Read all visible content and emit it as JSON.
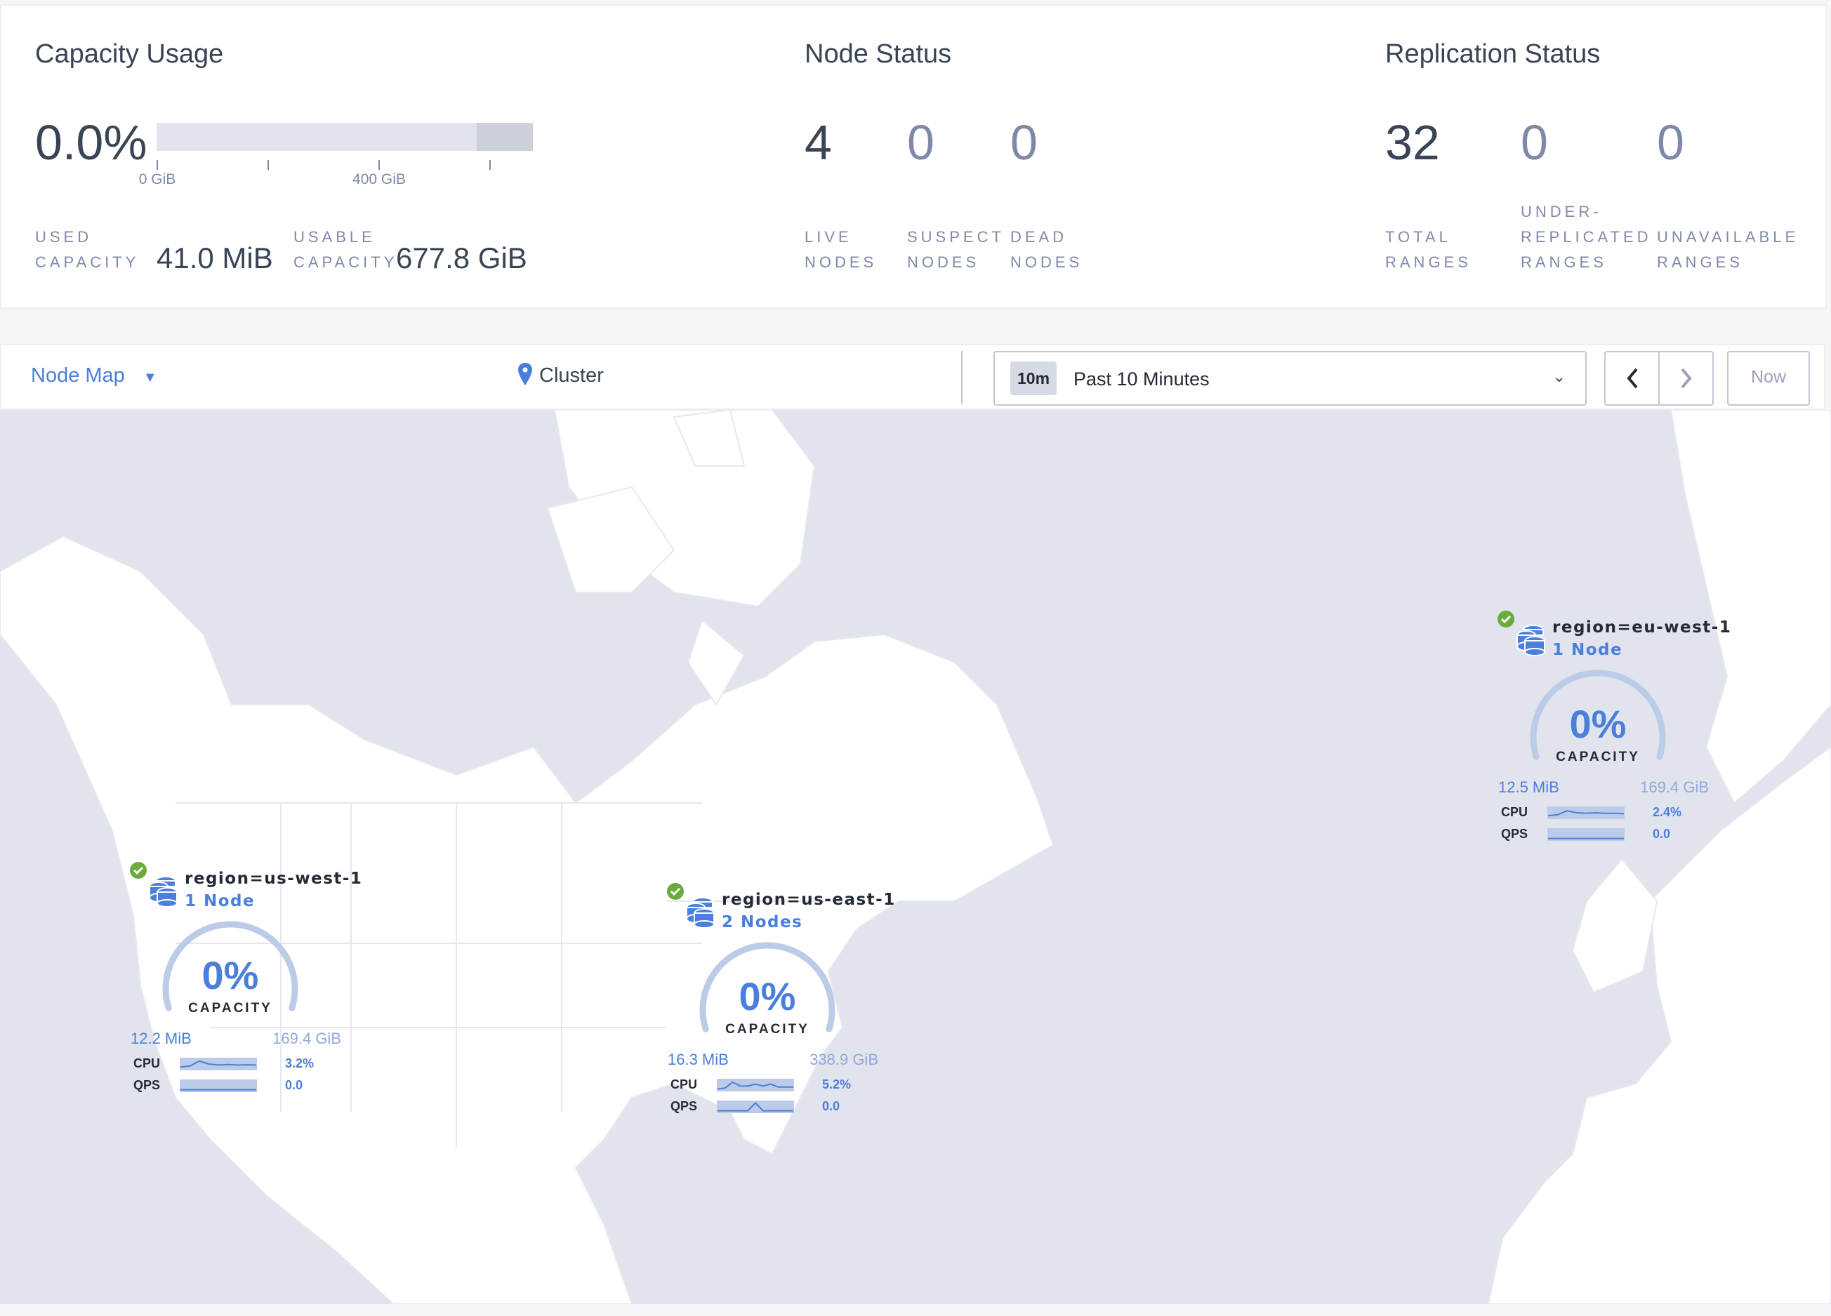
{
  "capacity": {
    "title": "Capacity Usage",
    "percent": "0.0%",
    "used_fraction": 0.0,
    "axis_labels": [
      "0 GiB",
      "400 GiB"
    ],
    "used_label": [
      "USED",
      "CAPACITY"
    ],
    "used_value": "41.0 MiB",
    "usable_label": [
      "USABLE",
      "CAPACITY"
    ],
    "usable_value": "677.8 GiB"
  },
  "node_status": {
    "title": "Node Status",
    "stats": [
      {
        "value": "4",
        "label": [
          "LIVE",
          "NODES"
        ]
      },
      {
        "value": "0",
        "label": [
          "SUSPECT",
          "NODES"
        ]
      },
      {
        "value": "0",
        "label": [
          "DEAD",
          "NODES"
        ]
      }
    ]
  },
  "replication": {
    "title": "Replication Status",
    "stats": [
      {
        "value": "32",
        "label": [
          "",
          "TOTAL",
          "RANGES"
        ]
      },
      {
        "value": "0",
        "label": [
          "UNDER-",
          "REPLICATED",
          "RANGES"
        ]
      },
      {
        "value": "0",
        "label": [
          "",
          "UNAVAILABLE",
          "RANGES"
        ]
      }
    ]
  },
  "toolbar": {
    "view": "Node Map",
    "scope": "Cluster",
    "time_badge": "10m",
    "time_range": "Past 10 Minutes",
    "now": "Now"
  },
  "colors": {
    "accent": "#4a7fdb",
    "ok": "#6aac3c",
    "ocean": "#e1e4ec"
  },
  "nodes": [
    {
      "region": "region=us-west-1",
      "count": "1 Node",
      "percent": "0%",
      "capacity_label": "CAPACITY",
      "used": "12.2 MiB",
      "total": "169.4 GiB",
      "cpu_label": "CPU",
      "cpu": "3.2%",
      "qps_label": "QPS",
      "qps": "0.0",
      "cpu_spark": [
        0.2,
        0.3,
        0.8,
        0.5,
        0.4,
        0.45,
        0.4,
        0.42,
        0.4
      ],
      "qps_spark": [
        0.1,
        0.1,
        0.1,
        0.1,
        0.1,
        0.1,
        0.1,
        0.1,
        0.1
      ]
    },
    {
      "region": "region=us-east-1",
      "count": "2 Nodes",
      "percent": "0%",
      "capacity_label": "CAPACITY",
      "used": "16.3 MiB",
      "total": "338.9 GiB",
      "cpu_label": "CPU",
      "cpu": "5.2%",
      "qps_label": "QPS",
      "qps": "0.0",
      "cpu_spark": [
        0.1,
        0.2,
        0.8,
        0.4,
        0.4,
        0.6,
        0.4,
        0.6,
        0.3,
        0.3,
        0.3
      ],
      "qps_spark": [
        0.1,
        0.1,
        0.1,
        0.1,
        0.1,
        0.9,
        0.1,
        0.1,
        0.1,
        0.1,
        0.1
      ]
    },
    {
      "region": "region=eu-west-1",
      "count": "1 Node",
      "percent": "0%",
      "capacity_label": "CAPACITY",
      "used": "12.5 MiB",
      "total": "169.4 GiB",
      "cpu_label": "CPU",
      "cpu": "2.4%",
      "qps_label": "QPS",
      "qps": "0.0",
      "cpu_spark": [
        0.2,
        0.3,
        0.7,
        0.5,
        0.45,
        0.5,
        0.45,
        0.45,
        0.4
      ],
      "qps_spark": [
        0.1,
        0.1,
        0.1,
        0.1,
        0.1,
        0.1,
        0.1,
        0.1,
        0.1
      ]
    }
  ]
}
